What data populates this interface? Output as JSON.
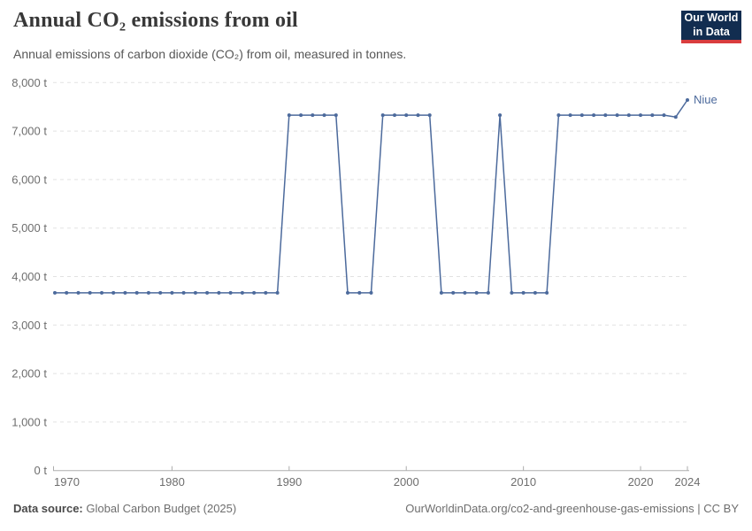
{
  "header": {
    "title": "Annual CO₂ emissions from oil",
    "subtitle": "Annual emissions of carbon dioxide (CO₂) from oil, measured in tonnes.",
    "logo": {
      "line1": "Our World",
      "line2": "in Data"
    }
  },
  "chart_data": {
    "type": "line",
    "title": "Annual CO₂ emissions from oil",
    "y_unit": "t",
    "ylim": [
      0,
      8000
    ],
    "grid": "horizontal-dashed",
    "legend_position": "end-of-line-label",
    "y_ticks": [
      {
        "value": 0,
        "label": "0 t"
      },
      {
        "value": 1000,
        "label": "1,000 t"
      },
      {
        "value": 2000,
        "label": "2,000 t"
      },
      {
        "value": 3000,
        "label": "3,000 t"
      },
      {
        "value": 4000,
        "label": "4,000 t"
      },
      {
        "value": 5000,
        "label": "5,000 t"
      },
      {
        "value": 6000,
        "label": "6,000 t"
      },
      {
        "value": 7000,
        "label": "7,000 t"
      },
      {
        "value": 8000,
        "label": "8,000 t"
      }
    ],
    "x_ticks": [
      {
        "value": 1970,
        "label": "1970"
      },
      {
        "value": 1980,
        "label": "1980"
      },
      {
        "value": 1990,
        "label": "1990"
      },
      {
        "value": 2000,
        "label": "2000"
      },
      {
        "value": 2010,
        "label": "2010"
      },
      {
        "value": 2020,
        "label": "2020"
      },
      {
        "value": 2024,
        "label": "2024"
      }
    ],
    "series": [
      {
        "name": "Niue",
        "color": "#4c6a9c",
        "x": [
          1970,
          1971,
          1972,
          1973,
          1974,
          1975,
          1976,
          1977,
          1978,
          1979,
          1980,
          1981,
          1982,
          1983,
          1984,
          1985,
          1986,
          1987,
          1988,
          1989,
          1990,
          1991,
          1992,
          1993,
          1994,
          1995,
          1996,
          1997,
          1998,
          1999,
          2000,
          2001,
          2002,
          2003,
          2004,
          2005,
          2006,
          2007,
          2008,
          2009,
          2010,
          2011,
          2012,
          2013,
          2014,
          2015,
          2016,
          2017,
          2018,
          2019,
          2020,
          2021,
          2022,
          2023,
          2024
        ],
        "values": [
          3664,
          3664,
          3664,
          3664,
          3664,
          3664,
          3664,
          3664,
          3664,
          3664,
          3664,
          3664,
          3664,
          3664,
          3664,
          3664,
          3664,
          3664,
          3664,
          3664,
          7329,
          7329,
          7329,
          7329,
          7329,
          3664,
          3664,
          3664,
          7329,
          7329,
          7329,
          7329,
          7329,
          3664,
          3664,
          3664,
          3664,
          3664,
          7329,
          3664,
          3664,
          3664,
          3664,
          7329,
          7329,
          7329,
          7329,
          7329,
          7329,
          7329,
          7329,
          7329,
          7329,
          7290,
          7640
        ]
      }
    ]
  },
  "footer": {
    "source_label": "Data source:",
    "source_value": "Global Carbon Budget (2025)",
    "link": "OurWorldinData.org/co2-and-greenhouse-gas-emissions | CC BY"
  }
}
